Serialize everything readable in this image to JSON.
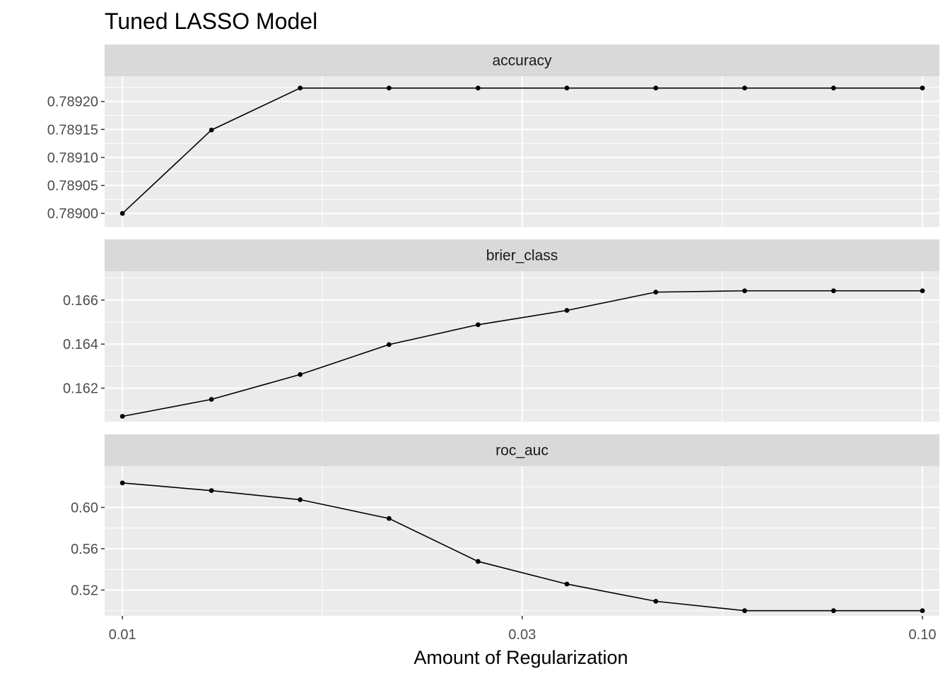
{
  "chart_data": {
    "type": "line",
    "title": "Tuned LASSO Model",
    "xlabel": "Amount of Regularization",
    "ylabel": "",
    "x_scale": "log10",
    "x_range": [
      0.0095,
      0.105
    ],
    "x_ticks": [
      {
        "value": 0.01,
        "label": "0.01"
      },
      {
        "value": 0.0316,
        "label": "0.03"
      },
      {
        "value": 0.1,
        "label": "0.10"
      }
    ],
    "x": [
      0.01,
      0.01292,
      0.01668,
      0.02154,
      0.02783,
      0.03594,
      0.04642,
      0.05995,
      0.07743,
      0.1
    ],
    "grid": true,
    "colors": {
      "panel_background": "#ebebeb",
      "strip_background": "#d9d9d9",
      "grid": "#ffffff",
      "line": "#000000",
      "point": "#000000"
    },
    "panels": [
      {
        "name": "accuracy",
        "ylim": [
          0.788975,
          0.789245
        ],
        "y_ticks": [
          {
            "value": 0.789,
            "label": "0.78900"
          },
          {
            "value": 0.78905,
            "label": "0.78905"
          },
          {
            "value": 0.7891,
            "label": "0.78910"
          },
          {
            "value": 0.78915,
            "label": "0.78915"
          },
          {
            "value": 0.7892,
            "label": "0.78920"
          }
        ],
        "values": [
          0.789,
          0.789149,
          0.789224,
          0.789224,
          0.789224,
          0.789224,
          0.789224,
          0.789224,
          0.789224,
          0.789224
        ]
      },
      {
        "name": "brier_class",
        "ylim": [
          0.16048,
          0.16731
        ],
        "y_ticks": [
          {
            "value": 0.162,
            "label": "0.162"
          },
          {
            "value": 0.164,
            "label": "0.164"
          },
          {
            "value": 0.166,
            "label": "0.166"
          }
        ],
        "values": [
          0.16072,
          0.16149,
          0.16262,
          0.16398,
          0.16488,
          0.16553,
          0.16636,
          0.16642,
          0.16642,
          0.16642
        ]
      },
      {
        "name": "roc_auc",
        "ylim": [
          0.495,
          0.64
        ],
        "y_ticks": [
          {
            "value": 0.52,
            "label": "0.52"
          },
          {
            "value": 0.56,
            "label": "0.56"
          },
          {
            "value": 0.6,
            "label": "0.60"
          }
        ],
        "values": [
          0.6237,
          0.6163,
          0.6075,
          0.5893,
          0.5477,
          0.5258,
          0.5091,
          0.5,
          0.5,
          0.5
        ]
      }
    ]
  }
}
